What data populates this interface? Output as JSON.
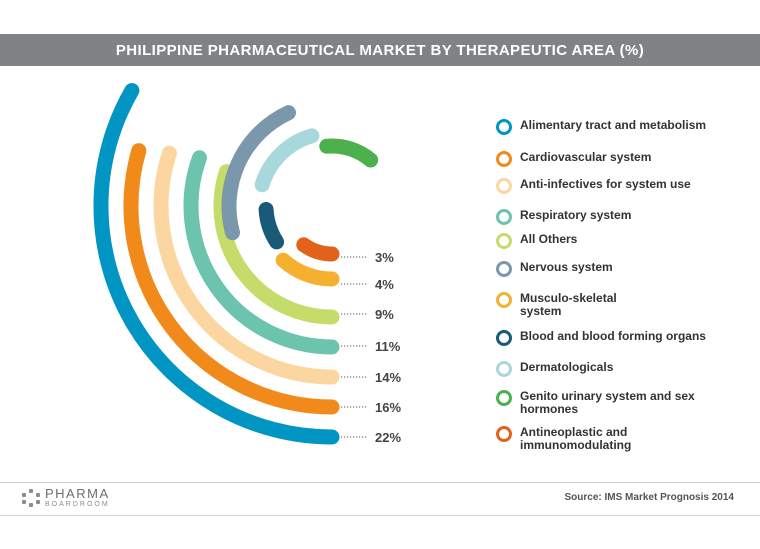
{
  "title": "PHILIPPINE PHARMACEUTICAL MARKET BY THERAPEUTIC AREA (%)",
  "chart_data": {
    "type": "radial-arc",
    "title": "PHILIPPINE PHARMACEUTICAL MARKET BY THERAPEUTIC AREA (%)",
    "value_labels": [
      "22%",
      "16%",
      "14%",
      "11%",
      "9%",
      "4%",
      "3%"
    ],
    "series": [
      {
        "name": "Alimentary tract and metabolism",
        "color": "#0095c3",
        "value": 22
      },
      {
        "name": "Cardiovascular system",
        "color": "#f28a1b",
        "value": 16
      },
      {
        "name": "Anti-infectives for system use",
        "color": "#fcd6a0",
        "value": 14
      },
      {
        "name": "Respiratory system",
        "color": "#6cc3ae",
        "value": 11
      },
      {
        "name": "All Others",
        "color": "#c5dc6a",
        "value": 9
      },
      {
        "name": "Nervous system",
        "color": "#7b97ab",
        "value": null
      },
      {
        "name": "Musculo-skeletal system",
        "color": "#f6b030",
        "value": 4
      },
      {
        "name": "Blood and blood forming organs",
        "color": "#195a78",
        "value": null
      },
      {
        "name": "Dermatologicals",
        "color": "#a9d8dc",
        "value": null
      },
      {
        "name": "Genito urinary system and sex hormones",
        "color": "#4cb04c",
        "value": null
      },
      {
        "name": "Antineoplastic and immunomodulating",
        "color": "#e2621c",
        "value": 3
      }
    ]
  },
  "legend": [
    {
      "label": "Alimentary tract and metabolism",
      "color": "#0095c3"
    },
    {
      "label": "Cardiovascular system",
      "color": "#f28a1b"
    },
    {
      "label": "Anti-infectives for system use",
      "color": "#fcd6a0"
    },
    {
      "label": "Respiratory system",
      "color": "#6cc3ae"
    },
    {
      "label": "All Others",
      "color": "#c5dc6a"
    },
    {
      "label": "Nervous system",
      "color": "#7b97ab"
    },
    {
      "label": "Musculo-skeletal system",
      "color": "#f6b030"
    },
    {
      "label": "Blood and blood forming organs",
      "color": "#195a78"
    },
    {
      "label": "Dermatologicals",
      "color": "#a9d8dc"
    },
    {
      "label": "Genito urinary system and sex hormones",
      "color": "#4cb04c"
    },
    {
      "label": "Antineoplastic and immunomodulating",
      "color": "#e2621c"
    }
  ],
  "footer": {
    "logo_main": "PHARMA",
    "logo_sub": "BOARDROOM",
    "source": "Source: IMS Market Prognosis 2014"
  }
}
